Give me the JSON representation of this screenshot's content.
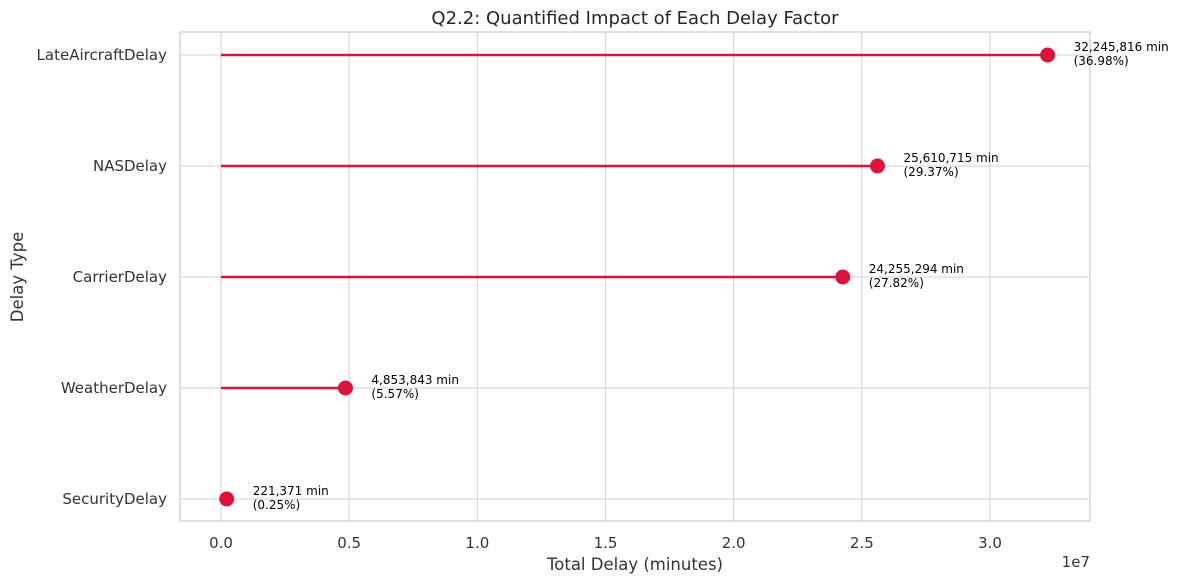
{
  "chart_data": {
    "type": "lollipop",
    "title": "Q2.2: Quantified Impact of Each Delay Factor",
    "xlabel": "Total Delay (minutes)",
    "ylabel": "Delay Type",
    "x_scale_label": "1e7",
    "x_scale_factor": 10000000,
    "xlim": [
      -1600000,
      33900000
    ],
    "x_ticks": [
      0,
      5000000,
      10000000,
      15000000,
      20000000,
      25000000,
      30000000
    ],
    "x_tick_labels": [
      "0.0",
      "0.5",
      "1.0",
      "1.5",
      "2.0",
      "2.5",
      "3.0"
    ],
    "grid": true,
    "color": "#dc143c",
    "categories": [
      "LateAircraftDelay",
      "NASDelay",
      "CarrierDelay",
      "WeatherDelay",
      "SecurityDelay"
    ],
    "values": [
      32245816,
      25610715,
      24255294,
      4853843,
      221371
    ],
    "annotations": [
      {
        "value_text": "32,245,816 min",
        "pct_text": "(36.98%)"
      },
      {
        "value_text": "25,610,715 min",
        "pct_text": "(29.37%)"
      },
      {
        "value_text": "24,255,294 min",
        "pct_text": "(27.82%)"
      },
      {
        "value_text": "4,853,843 min",
        "pct_text": "(5.57%)"
      },
      {
        "value_text": "221,371 min",
        "pct_text": "(0.25%)"
      }
    ]
  }
}
